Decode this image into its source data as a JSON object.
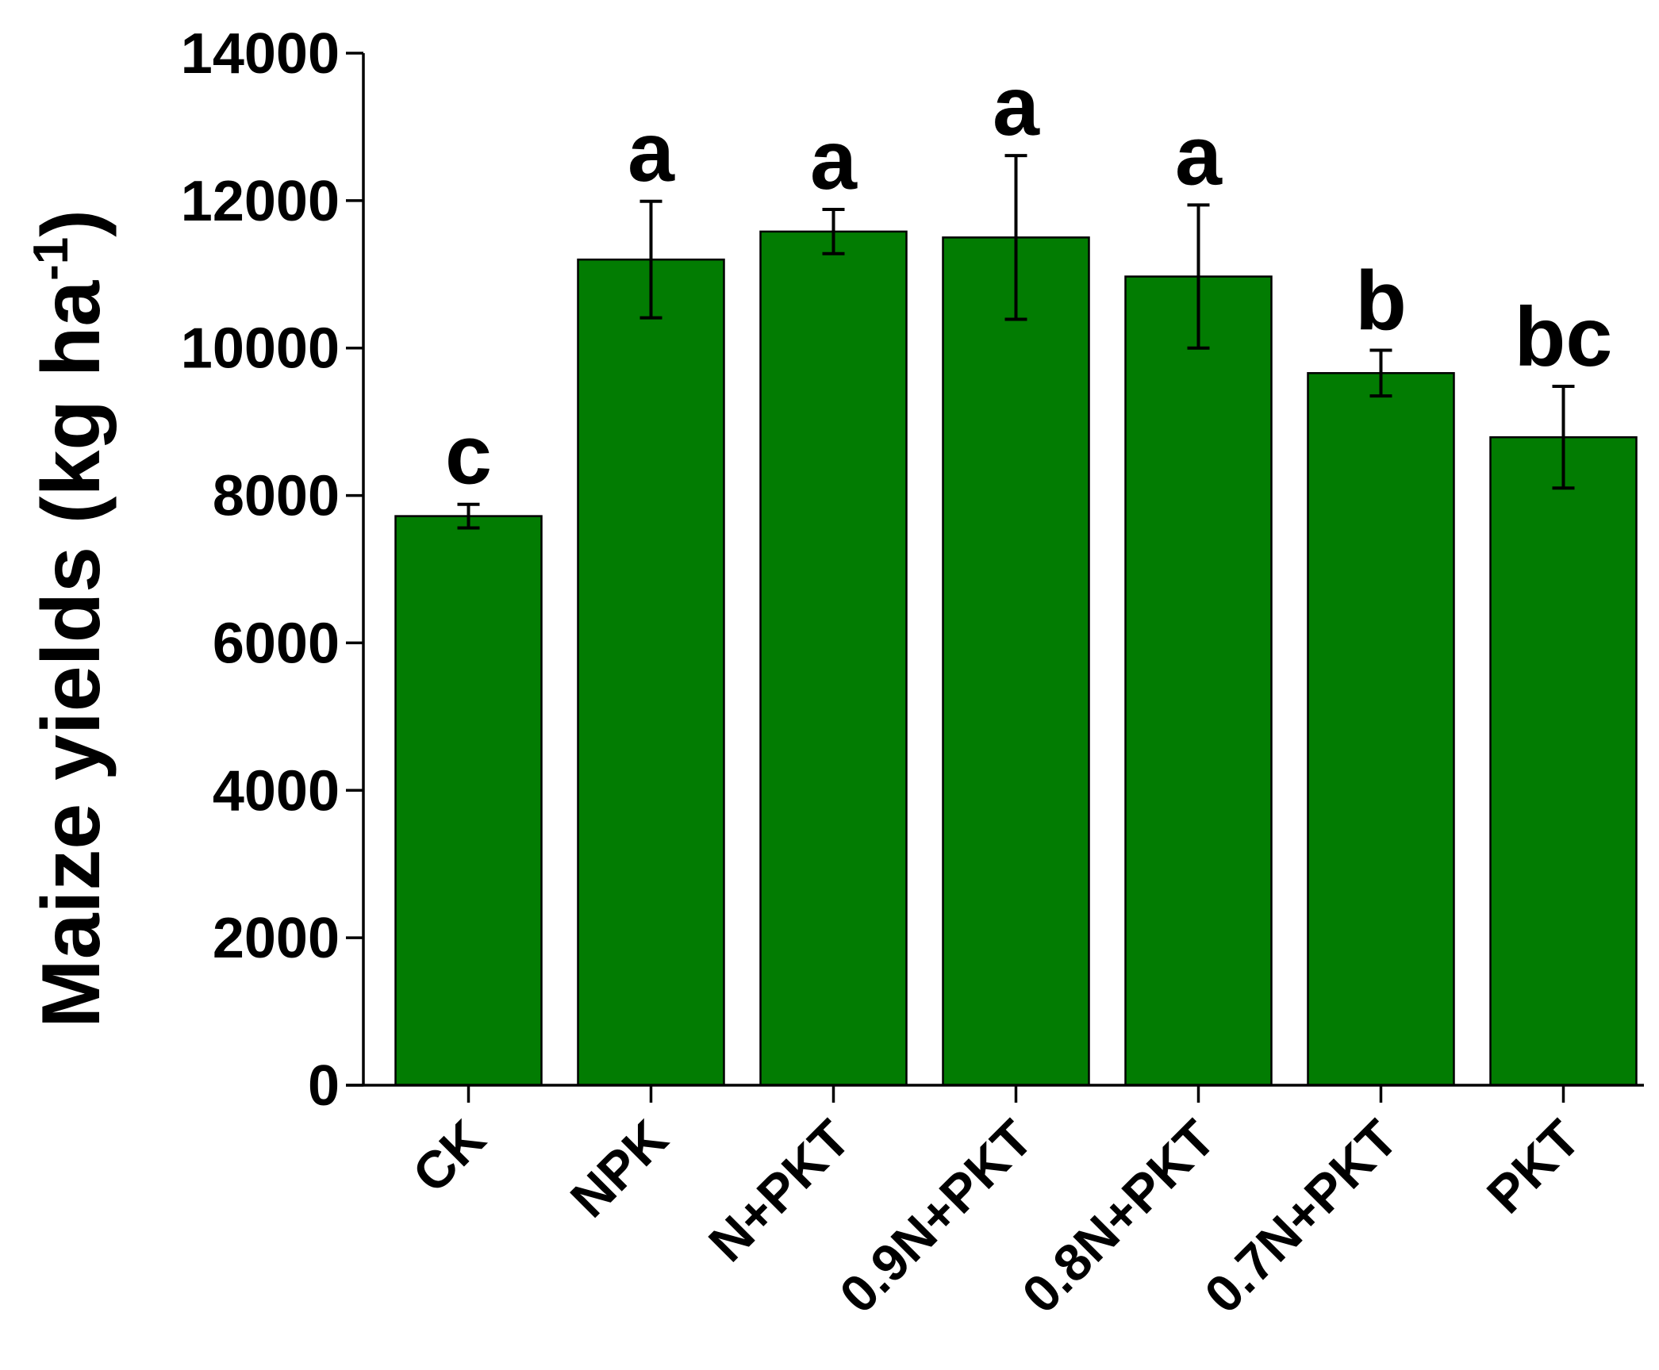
{
  "chart_data": {
    "type": "bar",
    "title": "",
    "xlabel": "",
    "ylabel": {
      "main": "Maize yields (kg ha",
      "superscript": "-1",
      "close": ")"
    },
    "ylim": [
      0,
      14000
    ],
    "yticks": [
      0,
      2000,
      4000,
      6000,
      8000,
      10000,
      12000,
      14000
    ],
    "ytick_labels": [
      "0",
      "2000",
      "4000",
      "6000",
      "8000",
      "10000",
      "12000",
      "14000"
    ],
    "categories": [
      "CK",
      "NPK",
      "N+PKT",
      "0.9N+PKT",
      "0.8N+PKT",
      "0.7N+PKT",
      "PKT"
    ],
    "values": [
      7720,
      11200,
      11580,
      11500,
      10970,
      9660,
      8790
    ],
    "errors": [
      160,
      790,
      300,
      1110,
      970,
      310,
      690
    ],
    "significance": [
      "c",
      "a",
      "a",
      "a",
      "a",
      "b",
      "bc"
    ],
    "bar_color": "#027c02",
    "grid": false
  }
}
